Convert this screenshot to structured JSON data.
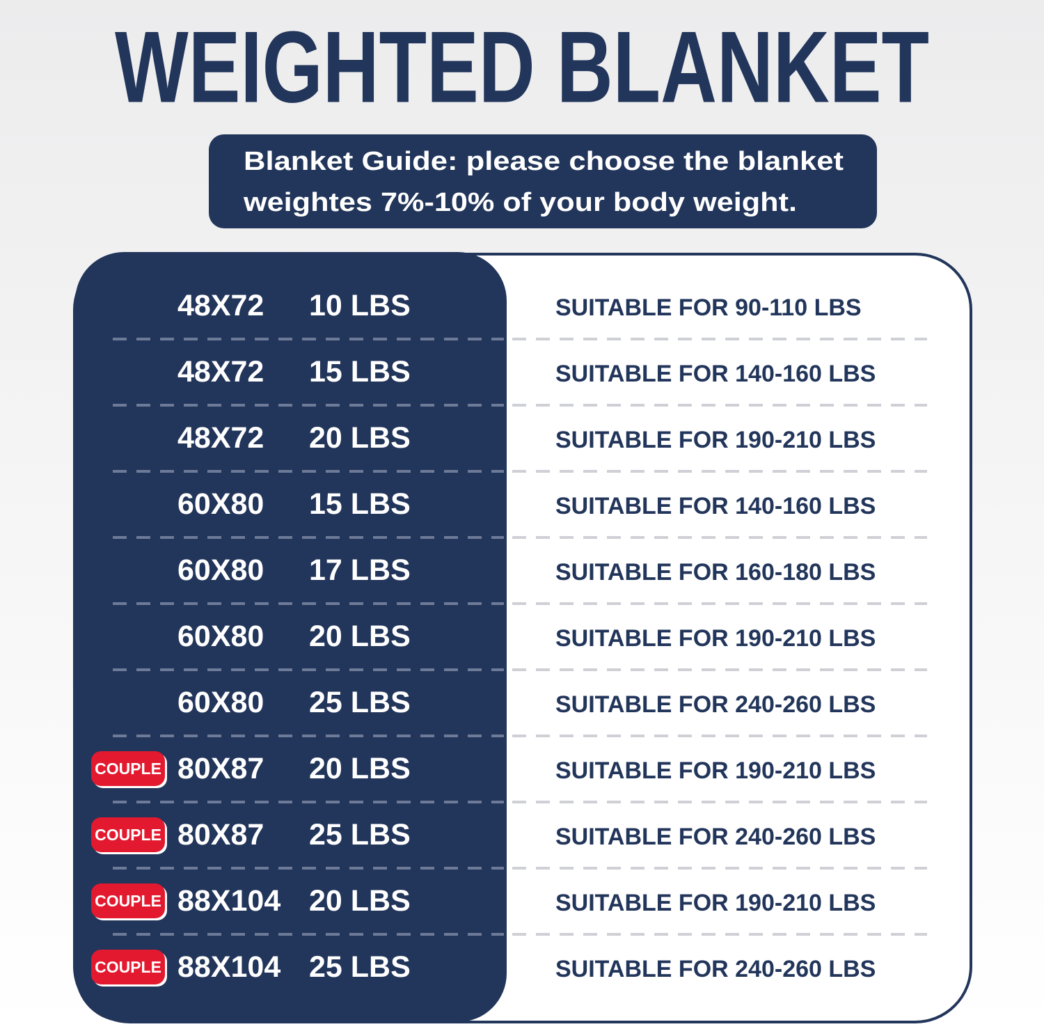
{
  "header": {
    "title": "WEIGHTED BLANKET"
  },
  "guide": {
    "lines": [
      "Blanket Guide: please choose the blanket",
      "weightes 7%-10% of your body weight."
    ]
  },
  "table": {
    "rows": [
      {
        "size": "48X72",
        "weight": "10 LBS",
        "suitable": "SUITABLE FOR 90-110 LBS"
      },
      {
        "size": "48X72",
        "weight": "15 LBS",
        "suitable": "SUITABLE FOR 140-160 LBS"
      },
      {
        "size": "48X72",
        "weight": "20 LBS",
        "suitable": "SUITABLE FOR 190-210 LBS"
      },
      {
        "size": "60X80",
        "weight": "15 LBS",
        "suitable": "SUITABLE FOR 140-160 LBS"
      },
      {
        "size": "60X80",
        "weight": "17 LBS",
        "suitable": "SUITABLE FOR 160-180 LBS"
      },
      {
        "size": "60X80",
        "weight": "20 LBS",
        "suitable": "SUITABLE FOR 190-210 LBS"
      },
      {
        "size": "60X80",
        "weight": "25 LBS",
        "suitable": "SUITABLE FOR 240-260 LBS"
      },
      {
        "badge": "COUPLE",
        "size": "80X87",
        "weight": "20 LBS",
        "suitable": "SUITABLE FOR 190-210 LBS"
      },
      {
        "badge": "COUPLE",
        "size": "80X87",
        "weight": "25 LBS",
        "suitable": "SUITABLE FOR 240-260 LBS"
      },
      {
        "badge": "COUPLE",
        "size": "88X104",
        "weight": "20 LBS",
        "suitable": "SUITABLE FOR 190-210 LBS"
      },
      {
        "badge": "COUPLE",
        "size": "88X104",
        "weight": "25 LBS",
        "suitable": "SUITABLE FOR 240-260 LBS"
      }
    ]
  }
}
